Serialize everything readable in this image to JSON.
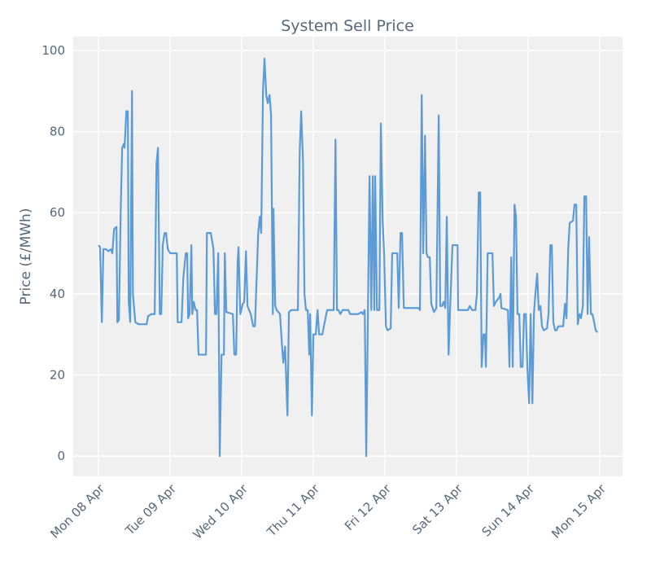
{
  "chart_data": {
    "type": "line",
    "title": "System Sell Price",
    "ylabel": "Price (£/MWh)",
    "x": [
      0,
      0.5,
      1.1,
      1.6,
      2.5,
      3.3,
      4.1,
      4.6,
      5.2,
      6.0,
      6.3,
      6.8,
      7.4,
      7.9,
      8.5,
      8.7,
      9.3,
      9.8,
      10.1,
      10.6,
      11.2,
      11.5,
      12.3,
      13.4,
      16.1,
      16.6,
      17.7,
      18.8,
      19.4,
      19.9,
      20.5,
      21.0,
      21.5,
      22.1,
      22.6,
      23.2,
      24.0,
      26.2,
      26.5,
      27.8,
      28.4,
      29.2,
      29.7,
      30.0,
      30.5,
      31.1,
      31.4,
      31.9,
      32.5,
      33.0,
      33.5,
      36.0,
      36.3,
      37.6,
      38.5,
      39.0,
      39.5,
      40.1,
      40.6,
      41.2,
      42.0,
      42.3,
      42.8,
      45.0,
      45.5,
      46.1,
      46.6,
      46.9,
      47.5,
      48.3,
      48.8,
      49.4,
      49.9,
      51.0,
      51.8,
      52.4,
      53.5,
      54.0,
      54.5,
      55.1,
      55.6,
      56.2,
      56.7,
      57.3,
      57.8,
      58.4,
      58.6,
      59.2,
      59.7,
      60.8,
      61.4,
      61.9,
      62.5,
      62.7,
      63.3,
      63.8,
      64.6,
      66.8,
      67.4,
      67.9,
      68.5,
      69.0,
      69.5,
      70.1,
      70.6,
      70.9,
      71.5,
      72.0,
      72.8,
      73.4,
      73.9,
      75.0,
      75.5,
      76.6,
      78.8,
      79.4,
      79.9,
      80.4,
      81.0,
      81.8,
      83.7,
      84.3,
      87.0,
      88.1,
      88.6,
      89.2,
      89.7,
      90.3,
      90.8,
      91.4,
      91.9,
      92.4,
      92.7,
      93.3,
      94.1,
      94.6,
      95.2,
      95.7,
      96.3,
      96.8,
      97.9,
      98.4,
      100.1,
      100.6,
      101.2,
      101.7,
      102.3,
      107.2,
      107.7,
      108.3,
      108.8,
      109.4,
      109.9,
      110.4,
      111.0,
      111.5,
      112.4,
      113.2,
      114.0,
      114.5,
      115.1,
      115.6,
      116.2,
      116.7,
      117.3,
      117.8,
      118.6,
      120.3,
      120.5,
      123.8,
      124.4,
      125.2,
      126.3,
      126.8,
      127.4,
      127.9,
      128.4,
      129.0,
      129.5,
      129.8,
      130.4,
      132.0,
      132.5,
      133.1,
      134.2,
      134.7,
      135.0,
      137.2,
      137.7,
      138.3,
      138.8,
      139.4,
      139.9,
      140.4,
      141.0,
      141.5,
      142.1,
      142.6,
      143.2,
      143.7,
      144.3,
      144.8,
      145.4,
      145.9,
      146.4,
      147.0,
      147.5,
      148.1,
      148.6,
      149.2,
      150.3,
      150.8,
      151.4,
      151.9,
      152.4,
      153.0,
      153.5,
      154.1,
      155.7,
      156.3,
      156.8,
      157.4,
      157.9,
      159.0,
      159.5,
      160.1,
      160.6,
      161.2,
      161.7,
      162.3,
      162.8,
      163.4,
      163.9,
      164.4,
      165.0,
      165.5,
      166.1,
      166.6,
      167.2
    ],
    "values": [
      52,
      51.5,
      33,
      51,
      51,
      50.5,
      51,
      50,
      56,
      56.5,
      33,
      33.5,
      60,
      76,
      77,
      76,
      85,
      85,
      38,
      33,
      90,
      40,
      33,
      32.5,
      32.5,
      34.5,
      35,
      35,
      72,
      76,
      35,
      35,
      52,
      55,
      55,
      51,
      50,
      50,
      33,
      33,
      44,
      50,
      50,
      34,
      35,
      52,
      35,
      38,
      36,
      36,
      25,
      25,
      55,
      55,
      51,
      35,
      35,
      50,
      0,
      25,
      25,
      50,
      35.5,
      35,
      25,
      25,
      48,
      51.5,
      35,
      37.5,
      38,
      50.5,
      37,
      35,
      32,
      32,
      55,
      59,
      55,
      90,
      98,
      89,
      87,
      89,
      84,
      35,
      61,
      37,
      36,
      35,
      28,
      23,
      27,
      23,
      10,
      35.5,
      36,
      36,
      75,
      85,
      73,
      40,
      36,
      36,
      25,
      35,
      10,
      30,
      30,
      36,
      30,
      30,
      32,
      36,
      36,
      78,
      36,
      36,
      35,
      36,
      36,
      35,
      35,
      35.5,
      35,
      36,
      0,
      37,
      69,
      36,
      69,
      36,
      69,
      36,
      36,
      82,
      58,
      50,
      32,
      31,
      31.5,
      50,
      50,
      36.5,
      55,
      55,
      36.5,
      36.5,
      36,
      89,
      50,
      79,
      50,
      49,
      49,
      37.5,
      35.5,
      36.5,
      84,
      37,
      37,
      38,
      36.5,
      59,
      25,
      36,
      52,
      52,
      36,
      36,
      37,
      36,
      36,
      40,
      65,
      65,
      22,
      30,
      30,
      22,
      50,
      50,
      37,
      38,
      39,
      40,
      36.5,
      36,
      22,
      49,
      22,
      62,
      59,
      35,
      35,
      22,
      22,
      35,
      35,
      22,
      13,
      35,
      13,
      35,
      40,
      45,
      36,
      37,
      32,
      31,
      31.5,
      35,
      52,
      52,
      33,
      31,
      31,
      32,
      32,
      37.5,
      34,
      51,
      57.5,
      58,
      62,
      62,
      32.5,
      35,
      34,
      37,
      64,
      64,
      35,
      54,
      35,
      35,
      33,
      31,
      30.5
    ],
    "color": "#5b9bd8",
    "xlim": [
      -8.5,
      175.6
    ],
    "ylim": [
      -5.0,
      103.4
    ],
    "xticks": [
      {
        "value": 0,
        "label": "Mon 08 Apr"
      },
      {
        "value": 24,
        "label": "Tue 09 Apr"
      },
      {
        "value": 48,
        "label": "Wed 10 Apr"
      },
      {
        "value": 72,
        "label": "Thu 11 Apr"
      },
      {
        "value": 96,
        "label": "Fri 12 Apr"
      },
      {
        "value": 120,
        "label": "Sat 13 Apr"
      },
      {
        "value": 144,
        "label": "Sun 14 Apr"
      },
      {
        "value": 168,
        "label": "Mon 15 Apr"
      }
    ],
    "yticks": [
      0,
      20,
      40,
      60,
      80,
      100
    ],
    "grid": true
  }
}
